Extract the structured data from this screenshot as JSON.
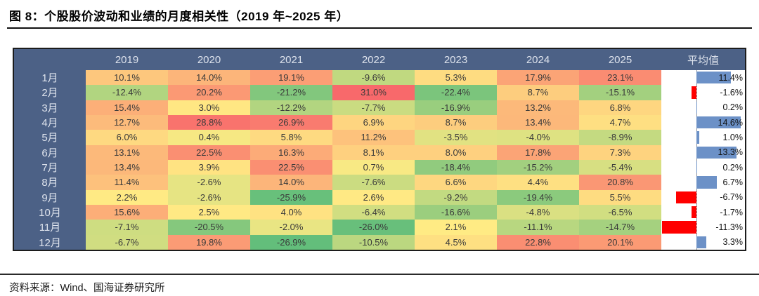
{
  "figure": {
    "title": "图 8：个股股价波动和业绩的月度相关性（2019 年~2025 年）",
    "source": "资料来源：Wind、国海证券研究所"
  },
  "chart_data": {
    "type": "heatmap",
    "title": "个股股价波动和业绩的月度相关性（2019年~2025年）",
    "unit": "%",
    "columns": [
      "2019",
      "2020",
      "2021",
      "2022",
      "2023",
      "2024",
      "2025"
    ],
    "average_column_label": "平均值",
    "row_labels": [
      "1月",
      "2月",
      "3月",
      "4月",
      "5月",
      "6月",
      "7月",
      "8月",
      "9月",
      "10月",
      "11月",
      "12月"
    ],
    "values": [
      [
        10.1,
        14.0,
        19.1,
        -9.6,
        5.3,
        17.9,
        23.1
      ],
      [
        -12.4,
        20.2,
        -21.2,
        31.0,
        -22.4,
        8.7,
        -15.1
      ],
      [
        15.4,
        3.0,
        -12.2,
        -7.7,
        -16.9,
        13.2,
        6.8
      ],
      [
        12.7,
        28.8,
        26.9,
        6.9,
        8.7,
        13.4,
        4.7
      ],
      [
        6.0,
        0.4,
        5.8,
        11.2,
        -3.5,
        -4.0,
        -8.9
      ],
      [
        13.1,
        22.5,
        16.3,
        8.1,
        8.0,
        17.8,
        7.3
      ],
      [
        13.4,
        3.9,
        22.5,
        0.7,
        -18.4,
        -15.2,
        -5.4
      ],
      [
        11.4,
        -2.6,
        14.0,
        -7.6,
        6.6,
        4.4,
        20.8
      ],
      [
        2.2,
        -2.6,
        -25.9,
        2.6,
        -9.2,
        -19.4,
        5.5
      ],
      [
        15.6,
        2.5,
        4.0,
        -6.4,
        -16.6,
        -4.8,
        -6.5
      ],
      [
        -7.1,
        -20.5,
        -2.0,
        -26.0,
        2.1,
        -11.1,
        -14.7
      ],
      [
        -6.7,
        19.8,
        -26.9,
        -10.5,
        4.5,
        22.8,
        20.1
      ]
    ],
    "averages": [
      11.4,
      -1.6,
      0.2,
      14.6,
      1.0,
      13.3,
      0.2,
      6.7,
      -6.7,
      -1.7,
      -11.3,
      3.3
    ],
    "colorscale": {
      "min_color": "#63BE7B",
      "mid_color": "#FFEB84",
      "max_color": "#F8696B"
    },
    "header_bg": "#4C6186",
    "bar_positive_color": "#6C91C7",
    "bar_negative_color": "#FF0000",
    "legend_position": "none",
    "grid": false
  }
}
